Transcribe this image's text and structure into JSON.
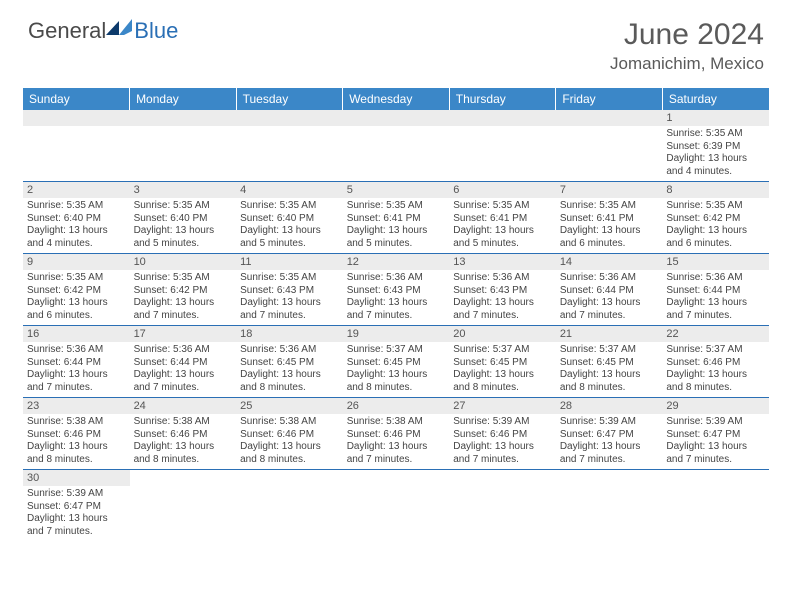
{
  "logo": {
    "general": "General",
    "blue": "Blue"
  },
  "title": "June 2024",
  "location": "Jomanichim, Mexico",
  "colors": {
    "header_bg": "#3b87c8",
    "header_text": "#ffffff",
    "daynum_bg": "#ececec",
    "border": "#2a6fb5",
    "logo_blue": "#2a6fb5",
    "logo_dark": "#0d3a6b"
  },
  "weekdays": [
    "Sunday",
    "Monday",
    "Tuesday",
    "Wednesday",
    "Thursday",
    "Friday",
    "Saturday"
  ],
  "weeks": [
    {
      "nums": [
        "",
        "",
        "",
        "",
        "",
        "",
        "1"
      ],
      "cells": [
        "",
        "",
        "",
        "",
        "",
        "",
        "Sunrise: 5:35 AM\nSunset: 6:39 PM\nDaylight: 13 hours and 4 minutes."
      ]
    },
    {
      "nums": [
        "2",
        "3",
        "4",
        "5",
        "6",
        "7",
        "8"
      ],
      "cells": [
        "Sunrise: 5:35 AM\nSunset: 6:40 PM\nDaylight: 13 hours and 4 minutes.",
        "Sunrise: 5:35 AM\nSunset: 6:40 PM\nDaylight: 13 hours and 5 minutes.",
        "Sunrise: 5:35 AM\nSunset: 6:40 PM\nDaylight: 13 hours and 5 minutes.",
        "Sunrise: 5:35 AM\nSunset: 6:41 PM\nDaylight: 13 hours and 5 minutes.",
        "Sunrise: 5:35 AM\nSunset: 6:41 PM\nDaylight: 13 hours and 5 minutes.",
        "Sunrise: 5:35 AM\nSunset: 6:41 PM\nDaylight: 13 hours and 6 minutes.",
        "Sunrise: 5:35 AM\nSunset: 6:42 PM\nDaylight: 13 hours and 6 minutes."
      ]
    },
    {
      "nums": [
        "9",
        "10",
        "11",
        "12",
        "13",
        "14",
        "15"
      ],
      "cells": [
        "Sunrise: 5:35 AM\nSunset: 6:42 PM\nDaylight: 13 hours and 6 minutes.",
        "Sunrise: 5:35 AM\nSunset: 6:42 PM\nDaylight: 13 hours and 7 minutes.",
        "Sunrise: 5:35 AM\nSunset: 6:43 PM\nDaylight: 13 hours and 7 minutes.",
        "Sunrise: 5:36 AM\nSunset: 6:43 PM\nDaylight: 13 hours and 7 minutes.",
        "Sunrise: 5:36 AM\nSunset: 6:43 PM\nDaylight: 13 hours and 7 minutes.",
        "Sunrise: 5:36 AM\nSunset: 6:44 PM\nDaylight: 13 hours and 7 minutes.",
        "Sunrise: 5:36 AM\nSunset: 6:44 PM\nDaylight: 13 hours and 7 minutes."
      ]
    },
    {
      "nums": [
        "16",
        "17",
        "18",
        "19",
        "20",
        "21",
        "22"
      ],
      "cells": [
        "Sunrise: 5:36 AM\nSunset: 6:44 PM\nDaylight: 13 hours and 7 minutes.",
        "Sunrise: 5:36 AM\nSunset: 6:44 PM\nDaylight: 13 hours and 7 minutes.",
        "Sunrise: 5:36 AM\nSunset: 6:45 PM\nDaylight: 13 hours and 8 minutes.",
        "Sunrise: 5:37 AM\nSunset: 6:45 PM\nDaylight: 13 hours and 8 minutes.",
        "Sunrise: 5:37 AM\nSunset: 6:45 PM\nDaylight: 13 hours and 8 minutes.",
        "Sunrise: 5:37 AM\nSunset: 6:45 PM\nDaylight: 13 hours and 8 minutes.",
        "Sunrise: 5:37 AM\nSunset: 6:46 PM\nDaylight: 13 hours and 8 minutes."
      ]
    },
    {
      "nums": [
        "23",
        "24",
        "25",
        "26",
        "27",
        "28",
        "29"
      ],
      "cells": [
        "Sunrise: 5:38 AM\nSunset: 6:46 PM\nDaylight: 13 hours and 8 minutes.",
        "Sunrise: 5:38 AM\nSunset: 6:46 PM\nDaylight: 13 hours and 8 minutes.",
        "Sunrise: 5:38 AM\nSunset: 6:46 PM\nDaylight: 13 hours and 8 minutes.",
        "Sunrise: 5:38 AM\nSunset: 6:46 PM\nDaylight: 13 hours and 7 minutes.",
        "Sunrise: 5:39 AM\nSunset: 6:46 PM\nDaylight: 13 hours and 7 minutes.",
        "Sunrise: 5:39 AM\nSunset: 6:47 PM\nDaylight: 13 hours and 7 minutes.",
        "Sunrise: 5:39 AM\nSunset: 6:47 PM\nDaylight: 13 hours and 7 minutes."
      ]
    },
    {
      "nums": [
        "30",
        "",
        "",
        "",
        "",
        "",
        ""
      ],
      "cells": [
        "Sunrise: 5:39 AM\nSunset: 6:47 PM\nDaylight: 13 hours and 7 minutes.",
        "",
        "",
        "",
        "",
        "",
        ""
      ]
    }
  ]
}
